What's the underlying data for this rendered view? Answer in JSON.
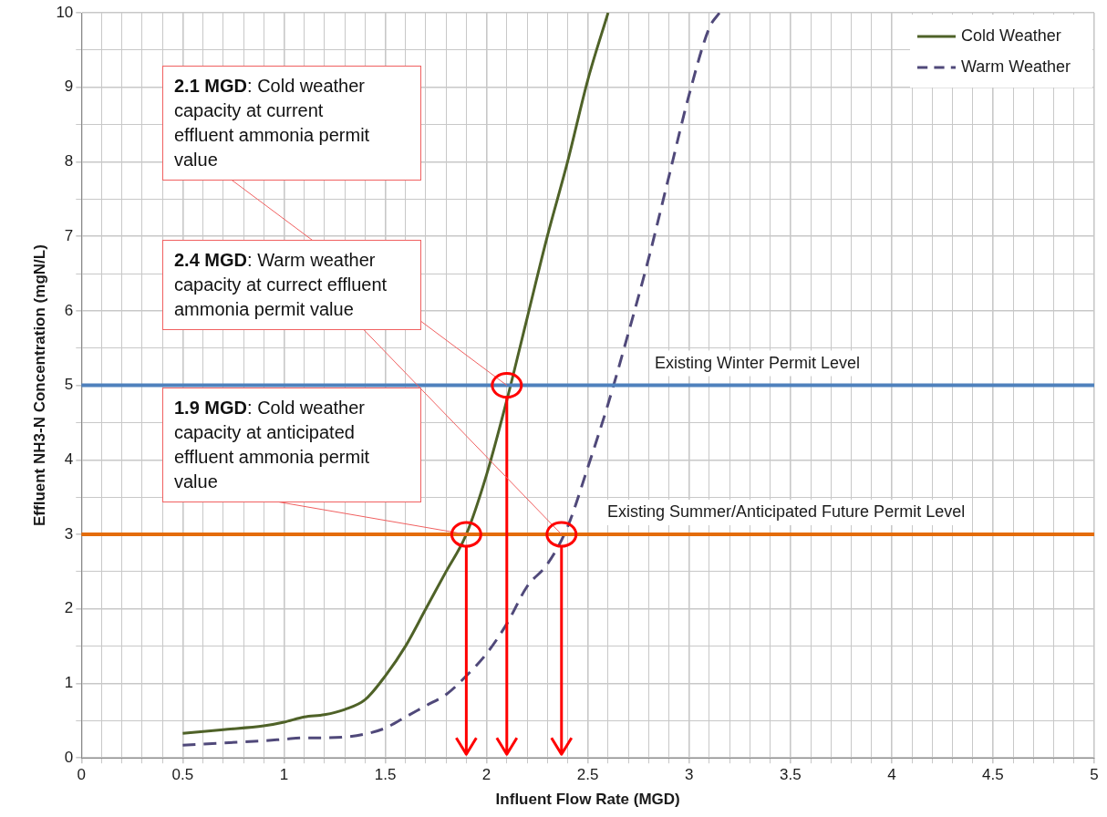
{
  "chart_data": {
    "type": "line",
    "xlabel": "Influent Flow Rate (MGD)",
    "ylabel": "Effluent NH3-N Concentration (mgN/L)",
    "xlim": [
      0,
      5
    ],
    "ylim": [
      0,
      10
    ],
    "xticks": [
      0,
      {
        "value": 0.1,
        "label": null
      },
      {
        "value": 0.2,
        "label": null
      },
      {
        "value": 0.3,
        "label": null
      },
      {
        "value": 0.4,
        "label": null
      },
      0.5,
      {
        "value": 0.6,
        "label": null
      },
      {
        "value": 0.7,
        "label": null
      },
      {
        "value": 0.8,
        "label": null
      },
      {
        "value": 0.9,
        "label": null
      },
      1,
      {
        "value": 1.1,
        "label": null
      },
      {
        "value": 1.2,
        "label": null
      },
      {
        "value": 1.3,
        "label": null
      },
      {
        "value": 1.4,
        "label": null
      },
      1.5,
      {
        "value": 1.6,
        "label": null
      },
      {
        "value": 1.7,
        "label": null
      },
      {
        "value": 1.8,
        "label": null
      },
      {
        "value": 1.9,
        "label": null
      },
      2,
      {
        "value": 2.1,
        "label": null
      },
      {
        "value": 2.2,
        "label": null
      },
      {
        "value": 2.3,
        "label": null
      },
      {
        "value": 2.4,
        "label": null
      },
      2.5,
      {
        "value": 2.6,
        "label": null
      },
      {
        "value": 2.7,
        "label": null
      },
      {
        "value": 2.8,
        "label": null
      },
      {
        "value": 2.9,
        "label": null
      },
      3,
      {
        "value": 3.1,
        "label": null
      },
      {
        "value": 3.2,
        "label": null
      },
      {
        "value": 3.3,
        "label": null
      },
      {
        "value": 3.4,
        "label": null
      },
      3.5,
      {
        "value": 3.6,
        "label": null
      },
      {
        "value": 3.7,
        "label": null
      },
      {
        "value": 3.8,
        "label": null
      },
      {
        "value": 3.9,
        "label": null
      },
      4,
      {
        "value": 4.1,
        "label": null
      },
      {
        "value": 4.2,
        "label": null
      },
      {
        "value": 4.3,
        "label": null
      },
      {
        "value": 4.4,
        "label": null
      },
      4.5,
      {
        "value": 4.6,
        "label": null
      },
      {
        "value": 4.7,
        "label": null
      },
      {
        "value": 4.8,
        "label": null
      },
      {
        "value": 4.9,
        "label": null
      },
      5
    ],
    "yticks": [
      0,
      {
        "value": 0.5,
        "label": null
      },
      1,
      {
        "value": 1.5,
        "label": null
      },
      2,
      {
        "value": 2.5,
        "label": null
      },
      3,
      {
        "value": 3.5,
        "label": null
      },
      4,
      {
        "value": 4.5,
        "label": null
      },
      5,
      {
        "value": 5.5,
        "label": null
      },
      6,
      {
        "value": 6.5,
        "label": null
      },
      7,
      {
        "value": 7.5,
        "label": null
      },
      8,
      {
        "value": 8.5,
        "label": null
      },
      9,
      {
        "value": 9.5,
        "label": null
      },
      10
    ],
    "grid": true,
    "legend": "top right",
    "marker": "none",
    "series": [
      {
        "name": "Cold Weather",
        "color": "#4f6228",
        "line_style": "solid",
        "x": [
          0.5,
          0.7,
          0.9,
          1.0,
          1.1,
          1.2,
          1.3,
          1.4,
          1.5,
          1.6,
          1.7,
          1.8,
          1.9,
          2.0,
          2.1,
          2.2,
          2.3,
          2.4,
          2.5,
          2.6
        ],
        "values": [
          0.33,
          0.38,
          0.43,
          0.48,
          0.55,
          0.58,
          0.65,
          0.78,
          1.1,
          1.5,
          2.0,
          2.5,
          3.0,
          3.8,
          4.8,
          5.9,
          7.0,
          8.0,
          9.1,
          10
        ]
      },
      {
        "name": "Warm Weather",
        "color": "#50497a",
        "line_style": "dashed",
        "x": [
          0.5,
          0.7,
          0.9,
          1.0,
          1.1,
          1.2,
          1.3,
          1.4,
          1.5,
          1.6,
          1.7,
          1.8,
          1.9,
          2.0,
          2.1,
          2.2,
          2.3,
          2.4,
          2.5,
          2.6,
          2.7,
          2.8,
          2.9,
          3.0,
          3.1,
          3.15
        ],
        "values": [
          0.17,
          0.2,
          0.23,
          0.25,
          0.27,
          0.27,
          0.28,
          0.32,
          0.4,
          0.55,
          0.7,
          0.85,
          1.1,
          1.4,
          1.8,
          2.3,
          2.6,
          3.1,
          3.9,
          4.75,
          5.7,
          6.7,
          7.8,
          8.9,
          9.8,
          10
        ]
      }
    ],
    "ref_lines": [
      {
        "axis": "y",
        "value": 5,
        "label": "Existing Winter Permit Level",
        "color": "#4f81bd"
      },
      {
        "axis": "y",
        "value": 3,
        "label": "Existing Summer/Anticipated Future Permit Level",
        "color": "#e46c0a"
      }
    ],
    "annotations": [
      {
        "text": "2.1 MGD: Cold weather capacity at current effluent ammonia permit value",
        "x": 2.1,
        "y": 5
      },
      {
        "text": "2.4 MGD: Warm weather capacity at currect effluent ammonia permit value",
        "x": 2.37,
        "y": 3
      },
      {
        "text": "1.9 MGD: Cold weather capacity at anticipated effluent ammonia permit value",
        "x": 1.9,
        "y": 3
      }
    ]
  }
}
